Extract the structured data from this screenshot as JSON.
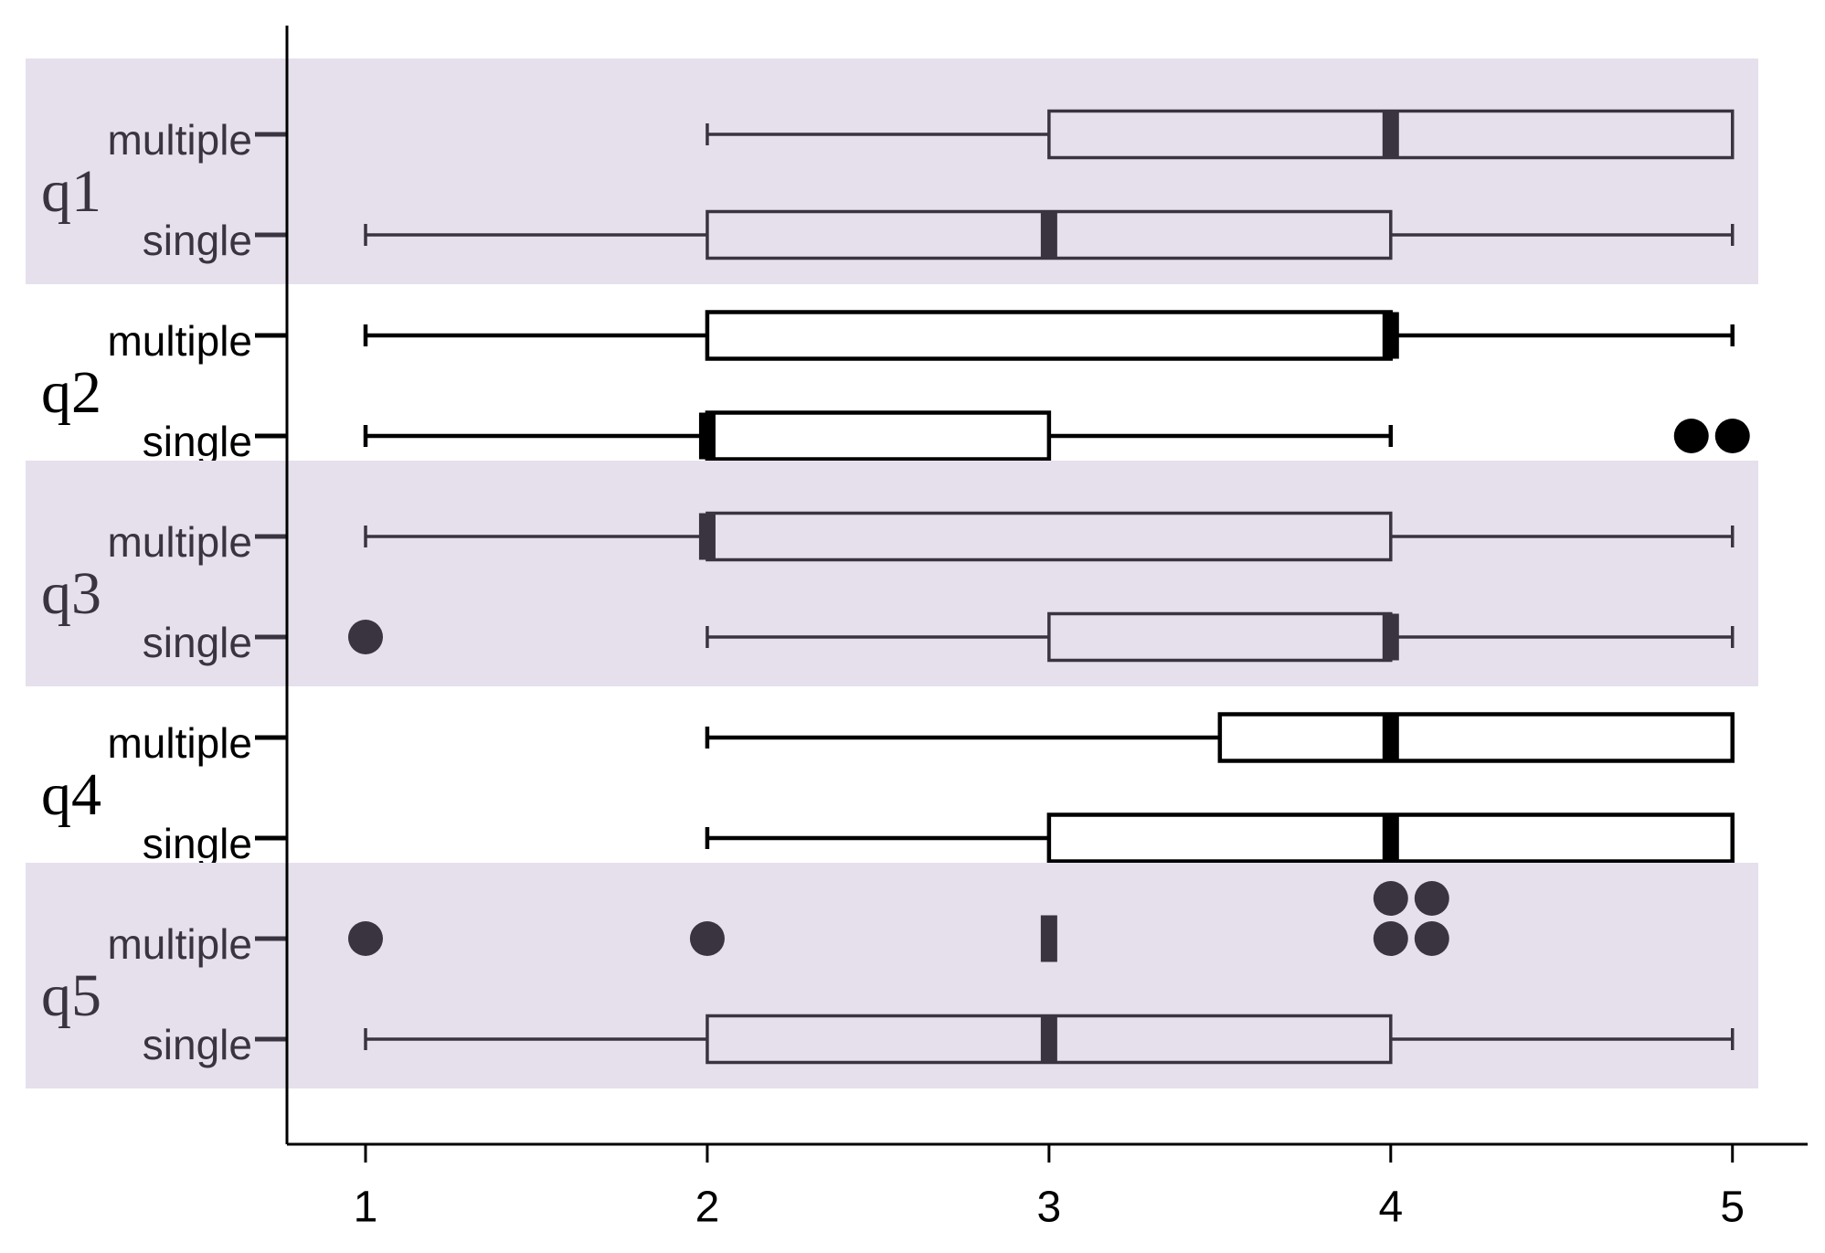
{
  "chart_data": {
    "type": "box",
    "band_color": "#e6e0ed",
    "xlim": [
      0.77,
      5.22
    ],
    "xticks": [
      1,
      2,
      3,
      4,
      5
    ],
    "groups": [
      {
        "name": "q1",
        "shaded": true,
        "color": "#3a3440",
        "series": [
          {
            "name": "multiple",
            "whislo": 2,
            "q1": 3,
            "med": 4,
            "q3": 5,
            "whishi": 5
          },
          {
            "name": "single",
            "whislo": 1,
            "q1": 2,
            "med": 3,
            "q3": 4,
            "whishi": 5
          }
        ]
      },
      {
        "name": "q2",
        "shaded": false,
        "color": "#000000",
        "series": [
          {
            "name": "multiple",
            "whislo": 1,
            "q1": 2,
            "med": 4,
            "q3": 4,
            "whishi": 5
          },
          {
            "name": "single",
            "whislo": 1,
            "q1": 2,
            "med": 2,
            "q3": 3,
            "whishi": 4,
            "fliers": [
              5,
              5
            ]
          }
        ]
      },
      {
        "name": "q3",
        "shaded": true,
        "color": "#3a3440",
        "series": [
          {
            "name": "multiple",
            "whislo": 1,
            "q1": 2,
            "med": 2,
            "q3": 4,
            "whishi": 5
          },
          {
            "name": "single",
            "whislo": 2,
            "q1": 3,
            "med": 4,
            "q3": 4,
            "whishi": 5,
            "fliers": [
              1
            ]
          }
        ]
      },
      {
        "name": "q4",
        "shaded": false,
        "color": "#000000",
        "series": [
          {
            "name": "multiple",
            "whislo": 2,
            "q1": 3.5,
            "med": 4,
            "q3": 5,
            "whishi": 5
          },
          {
            "name": "single",
            "whislo": 2,
            "q1": 3,
            "med": 4,
            "q3": 5,
            "whishi": 5
          }
        ]
      },
      {
        "name": "q5",
        "shaded": true,
        "color": "#3a3440",
        "series": [
          {
            "name": "multiple",
            "whislo": 3,
            "q1": 3,
            "med": 3,
            "q3": 3,
            "whishi": 3,
            "fliers": [
              1,
              2,
              4,
              4,
              4,
              4
            ]
          },
          {
            "name": "single",
            "whislo": 1,
            "q1": 2,
            "med": 3,
            "q3": 4,
            "whishi": 5
          }
        ]
      }
    ]
  }
}
